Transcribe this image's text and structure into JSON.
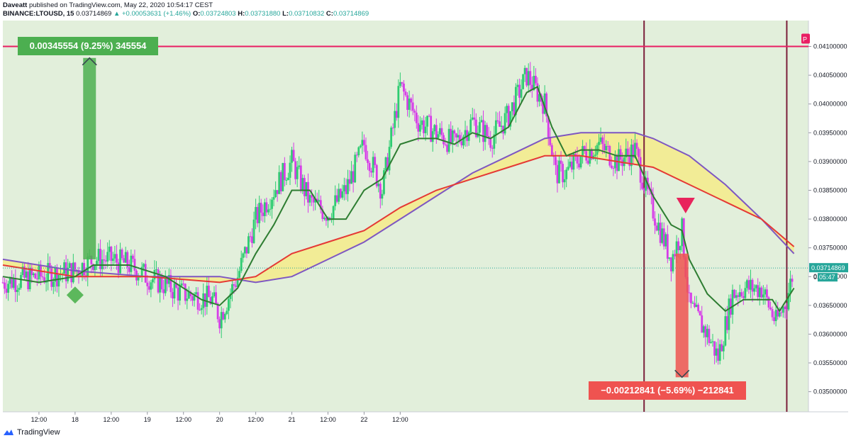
{
  "header": {
    "author": "Daveatt",
    "published_text": "published on TradingView.com, May 22, 2020 10:54:17 CEST",
    "symbol": "BINANCE:LTOUSD, 15",
    "last": "0.03714869",
    "change": "▲ +0.00053631 (+1.46%)",
    "o_label": "O:",
    "o_value": "0.03724803",
    "h_label": "H:",
    "h_value": "0.03731880",
    "l_label": "L:",
    "l_value": "0.03710832",
    "c_label": "C:",
    "c_value": "0.03714869"
  },
  "footer": {
    "brand": "TradingView",
    "logo_icon": "tradingview-logo-icon"
  },
  "colors": {
    "background": "#e2efdb",
    "up_candle": "#2ecc71",
    "down_candle": "#d63ce8",
    "fast_ma": "#2e7d32",
    "slow_ma": "#e53935",
    "long_ma": "#7e57c2",
    "cloud": "#f5eb8a",
    "hline": "#e91e63",
    "vline": "#7b1f3a",
    "long_box": "#4caf50",
    "short_box": "#ef5350"
  },
  "chart_data": {
    "type": "candlestick",
    "title": "BINANCE:LTOUSD, 15",
    "x_ticks": [
      "12:00",
      "18",
      "12:00",
      "19",
      "12:00",
      "20",
      "12:00",
      "21",
      "12:00",
      "22",
      "12:00"
    ],
    "y_ticks": [
      "0.04100000",
      "0.04050000",
      "0.04000000",
      "0.03950000",
      "0.03900000",
      "0.03850000",
      "0.03800000",
      "0.03750000",
      "0.03700000",
      "0.03650000",
      "0.03600000",
      "0.03550000",
      "0.03500000"
    ],
    "ylim": [
      0.03465,
      0.04145
    ],
    "xlim": [
      0,
      22.3
    ],
    "grid": false,
    "legend": "none",
    "horizontal_level": 0.041,
    "horizontal_level_label": "P",
    "vertical_lines": [
      17.75,
      21.7
    ],
    "last_price": "0.03714869",
    "countdown": "05:47",
    "price_behind": "0.037",
    "annotations": [
      {
        "text": "0.00345554 (9.25%) 345554",
        "type": "long",
        "arrow_from": 0.0373,
        "arrow_to": 0.0408,
        "x": 2.4
      },
      {
        "text": "−0.00212841 (−5.69%) −212841",
        "type": "short",
        "arrow_from": 0.0374,
        "arrow_to": 0.03525,
        "x": 18.8
      }
    ],
    "markers": [
      {
        "shape": "diamond",
        "x": 2.0,
        "y": 0.03668
      },
      {
        "shape": "triangle-down",
        "x": 18.9,
        "y": 0.0381
      }
    ],
    "price_anchors": [
      [
        0,
        0.0369
      ],
      [
        1,
        0.037
      ],
      [
        2,
        0.0371
      ],
      [
        2.5,
        0.0373
      ],
      [
        3,
        0.0373
      ],
      [
        3.5,
        0.0372
      ],
      [
        4,
        0.037
      ],
      [
        5,
        0.0367
      ],
      [
        5.8,
        0.0366
      ],
      [
        6,
        0.0363
      ],
      [
        6.5,
        0.037
      ],
      [
        7,
        0.038
      ],
      [
        7.5,
        0.0385
      ],
      [
        8,
        0.039
      ],
      [
        8.5,
        0.0383
      ],
      [
        9,
        0.0381
      ],
      [
        9.5,
        0.0385
      ],
      [
        10,
        0.0393
      ],
      [
        10.5,
        0.0385
      ],
      [
        11,
        0.0403
      ],
      [
        11.5,
        0.0397
      ],
      [
        12,
        0.0395
      ],
      [
        12.5,
        0.0393
      ],
      [
        13,
        0.0397
      ],
      [
        13.5,
        0.0394
      ],
      [
        14,
        0.0398
      ],
      [
        14.5,
        0.0405
      ],
      [
        15,
        0.04
      ],
      [
        15.3,
        0.0388
      ],
      [
        15.6,
        0.0388
      ],
      [
        16,
        0.0391
      ],
      [
        16.5,
        0.0393
      ],
      [
        17,
        0.039
      ],
      [
        17.5,
        0.0392
      ],
      [
        17.8,
        0.0385
      ],
      [
        18.2,
        0.0378
      ],
      [
        18.5,
        0.0373
      ],
      [
        18.8,
        0.0378
      ],
      [
        19,
        0.0365
      ],
      [
        19.5,
        0.036
      ],
      [
        19.8,
        0.0356
      ],
      [
        20.2,
        0.0367
      ],
      [
        20.5,
        0.0368
      ],
      [
        21,
        0.0368
      ],
      [
        21.4,
        0.0362
      ],
      [
        21.7,
        0.0366
      ],
      [
        21.9,
        0.03715
      ]
    ],
    "fast_ma": [
      [
        0,
        0.037
      ],
      [
        1,
        0.0369
      ],
      [
        2,
        0.037
      ],
      [
        2.5,
        0.0372
      ],
      [
        3.5,
        0.0372
      ],
      [
        4.5,
        0.037
      ],
      [
        5.5,
        0.0366
      ],
      [
        6,
        0.0365
      ],
      [
        6.5,
        0.0368
      ],
      [
        7,
        0.0374
      ],
      [
        7.5,
        0.0379
      ],
      [
        8,
        0.0385
      ],
      [
        8.5,
        0.0385
      ],
      [
        9,
        0.038
      ],
      [
        9.5,
        0.038
      ],
      [
        10,
        0.0385
      ],
      [
        10.5,
        0.0387
      ],
      [
        11,
        0.0393
      ],
      [
        11.5,
        0.0394
      ],
      [
        12,
        0.0394
      ],
      [
        12.5,
        0.0393
      ],
      [
        13,
        0.0395
      ],
      [
        13.5,
        0.0394
      ],
      [
        14,
        0.0396
      ],
      [
        14.5,
        0.0402
      ],
      [
        14.8,
        0.0403
      ],
      [
        15.2,
        0.0396
      ],
      [
        15.6,
        0.0391
      ],
      [
        16,
        0.0392
      ],
      [
        16.5,
        0.0392
      ],
      [
        17,
        0.0391
      ],
      [
        17.5,
        0.0391
      ],
      [
        18,
        0.0384
      ],
      [
        18.5,
        0.0379
      ],
      [
        18.8,
        0.0378
      ],
      [
        19,
        0.0373
      ],
      [
        19.5,
        0.0367
      ],
      [
        20,
        0.0364
      ],
      [
        20.5,
        0.0366
      ],
      [
        21,
        0.0366
      ],
      [
        21.3,
        0.0366
      ],
      [
        21.5,
        0.0364
      ],
      [
        21.7,
        0.0366
      ],
      [
        21.9,
        0.0368
      ]
    ],
    "slow_ma": [
      [
        0,
        0.0372
      ],
      [
        2,
        0.037
      ],
      [
        4,
        0.037
      ],
      [
        6,
        0.0369
      ],
      [
        7,
        0.037
      ],
      [
        8,
        0.0374
      ],
      [
        9,
        0.0376
      ],
      [
        10,
        0.0378
      ],
      [
        11,
        0.0382
      ],
      [
        12,
        0.0385
      ],
      [
        13,
        0.0387
      ],
      [
        14,
        0.0389
      ],
      [
        15,
        0.0391
      ],
      [
        16,
        0.0391
      ],
      [
        17,
        0.039
      ],
      [
        18,
        0.0389
      ],
      [
        19,
        0.0386
      ],
      [
        20,
        0.0383
      ],
      [
        21,
        0.038
      ],
      [
        21.9,
        0.03752
      ]
    ],
    "long_ma": [
      [
        0,
        0.0373
      ],
      [
        2,
        0.0371
      ],
      [
        4,
        0.037
      ],
      [
        5,
        0.037
      ],
      [
        6,
        0.037
      ],
      [
        7,
        0.0369
      ],
      [
        8,
        0.037
      ],
      [
        9,
        0.0373
      ],
      [
        10,
        0.0376
      ],
      [
        11,
        0.038
      ],
      [
        12,
        0.0384
      ],
      [
        13,
        0.0388
      ],
      [
        14,
        0.0391
      ],
      [
        15,
        0.0394
      ],
      [
        16,
        0.0395
      ],
      [
        17,
        0.0395
      ],
      [
        17.5,
        0.0395
      ],
      [
        18,
        0.0394
      ],
      [
        19,
        0.0391
      ],
      [
        20,
        0.0386
      ],
      [
        21,
        0.038
      ],
      [
        21.9,
        0.0374
      ]
    ]
  }
}
